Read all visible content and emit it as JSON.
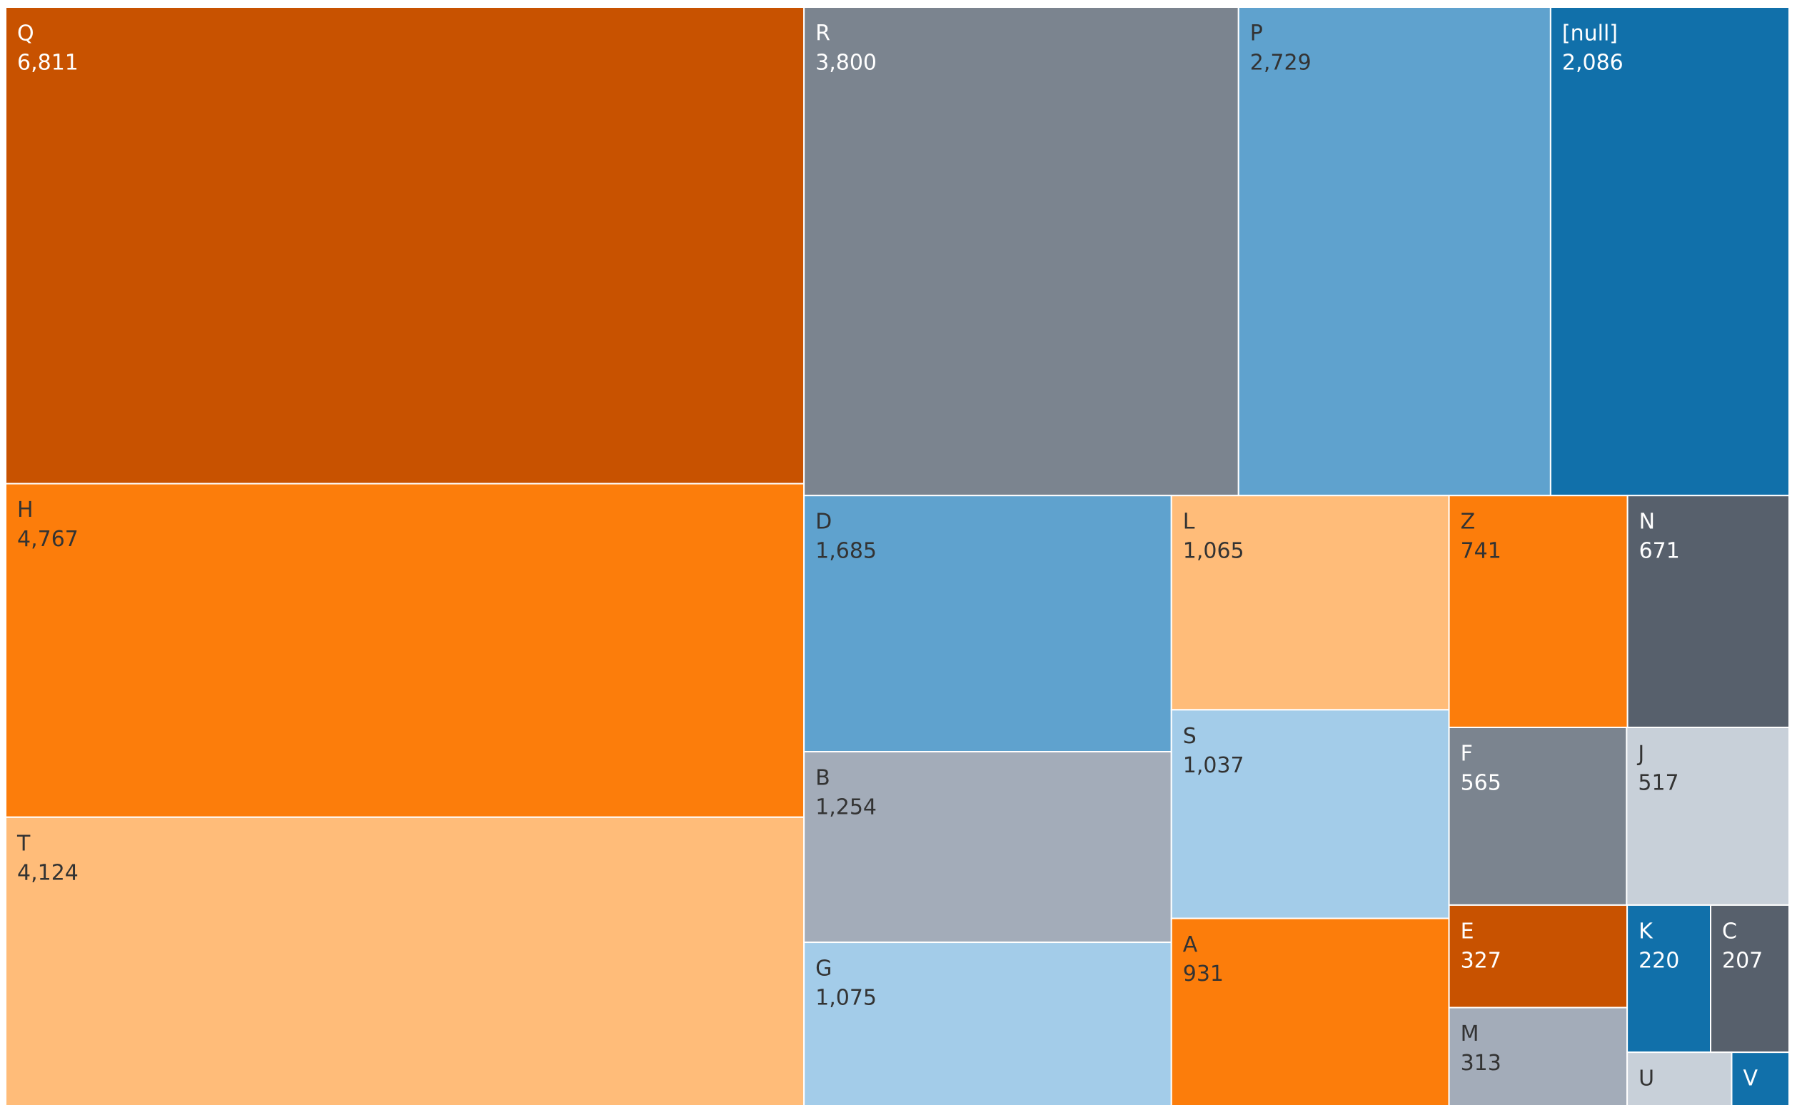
{
  "chart_data": {
    "type": "treemap",
    "categories": [
      "Q",
      "H",
      "T",
      "R",
      "P",
      "[null]",
      "D",
      "B",
      "G",
      "L",
      "S",
      "A",
      "Z",
      "N",
      "F",
      "J",
      "E",
      "M",
      "K",
      "C",
      "U",
      "V"
    ],
    "values": [
      6811,
      4767,
      4124,
      3800,
      2729,
      2086,
      1685,
      1254,
      1075,
      1065,
      1037,
      931,
      741,
      671,
      565,
      517,
      327,
      313,
      220,
      207,
      100,
      55
    ],
    "value_labels": [
      "6,811",
      "4,767",
      "4,124",
      "3,800",
      "2,729",
      "2,086",
      "1,685",
      "1,254",
      "1,075",
      "1,065",
      "1,037",
      "931",
      "741",
      "671",
      "565",
      "517",
      "327",
      "313",
      "220",
      "207",
      null,
      null
    ],
    "colors": [
      "#c85200",
      "#fc7d0b",
      "#ffbc79",
      "#7b848f",
      "#5fa2ce",
      "#1170aa",
      "#5fa2ce",
      "#a3acb9",
      "#a3cce9",
      "#ffbc79",
      "#a3cce9",
      "#fc7d0b",
      "#fc7d0b",
      "#57606c",
      "#7b848f",
      "#c8d0d9",
      "#c85200",
      "#a3acb9",
      "#1170aa",
      "#57606c",
      "#c8d0d9",
      "#1170aa"
    ]
  }
}
